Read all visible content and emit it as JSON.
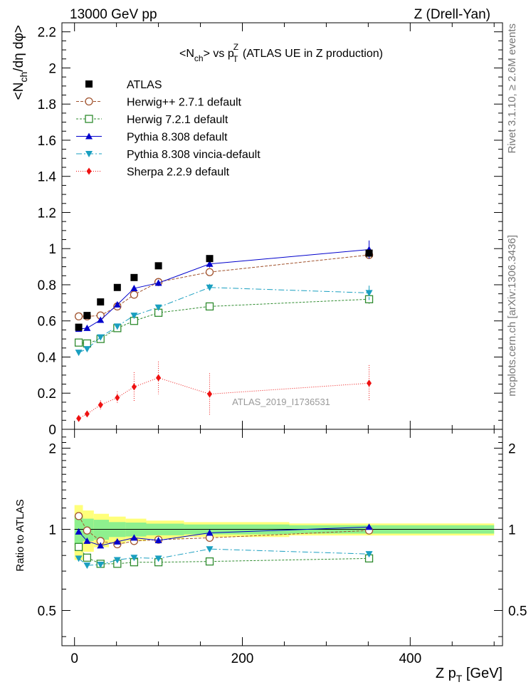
{
  "header": {
    "left": "13000 GeV pp",
    "right": "Z (Drell-Yan)"
  },
  "side_text": {
    "rivet": "Rivet 3.1.10, ≥ 2.6M events",
    "mcplots": "mcplots.cern.ch [arXiv:1306.3436]"
  },
  "chart_data": {
    "type": "scatter",
    "title": "<N_ch> vs p_T^Z (ATLAS UE in Z production)",
    "analysis_label": "ATLAS_2019_I1736531",
    "xlabel": "Z p_T [GeV]",
    "ylabel": "<N_ch/dη dφ>",
    "ratio_ylabel": "Ratio to ATLAS",
    "xlim": [
      -15,
      510
    ],
    "ylim": [
      0,
      2.25
    ],
    "ratio_ylim": [
      0.37,
      2.35
    ],
    "ratio_log_scale": true,
    "x_ticks": [
      "0",
      "200",
      "400"
    ],
    "y_ticks": [
      "0",
      "0.2",
      "0.4",
      "0.6",
      "0.8",
      "1",
      "1.2",
      "1.4",
      "1.6",
      "1.8",
      "2",
      "2.2"
    ],
    "ratio_ticks": [
      "0.5",
      "1",
      "2"
    ],
    "x": [
      5,
      15,
      31,
      51,
      71,
      100,
      161,
      351
    ],
    "reference": {
      "name": "ATLAS",
      "values": [
        0.565,
        0.63,
        0.705,
        0.785,
        0.84,
        0.905,
        0.945,
        0.975
      ],
      "band_inner": [
        0.07,
        0.06,
        0.06,
        0.05,
        0.05,
        0.045,
        0.04,
        0.035
      ],
      "band_outer": [
        0.13,
        0.11,
        0.1,
        0.09,
        0.08,
        0.07,
        0.06,
        0.05
      ]
    },
    "series": [
      {
        "name": "Herwig++ 2.7.1 default",
        "color": "#a0522d",
        "marker": "open-circle",
        "dash": "4,2",
        "values": [
          0.625,
          0.625,
          0.63,
          0.68,
          0.745,
          0.815,
          0.87,
          0.965
        ],
        "errors": [
          0.005,
          0.005,
          0.005,
          0.005,
          0.01,
          0.01,
          0.01,
          0.02
        ]
      },
      {
        "name": "Herwig 7.2.1 default",
        "color": "#2e8b2e",
        "marker": "open-square",
        "dash": "3,2",
        "values": [
          0.48,
          0.475,
          0.5,
          0.56,
          0.6,
          0.645,
          0.68,
          0.72
        ],
        "errors": [
          0.005,
          0.005,
          0.005,
          0.01,
          0.01,
          0.01,
          0.015,
          0.025
        ]
      },
      {
        "name": "Pythia 8.308 default",
        "color": "#0000cc",
        "marker": "triangle-up",
        "dash": "",
        "values": [
          0.555,
          0.56,
          0.605,
          0.69,
          0.78,
          0.81,
          0.915,
          0.995
        ],
        "errors": [
          0.005,
          0.005,
          0.005,
          0.01,
          0.01,
          0.015,
          0.02,
          0.05
        ]
      },
      {
        "name": "Pythia 8.308 vincia-default",
        "color": "#1a9fc0",
        "marker": "triangle-down",
        "dash": "8,3,2,3",
        "values": [
          0.425,
          0.445,
          0.51,
          0.57,
          0.63,
          0.675,
          0.785,
          0.755
        ],
        "errors": [
          0.005,
          0.005,
          0.005,
          0.01,
          0.01,
          0.015,
          0.02,
          0.04
        ]
      },
      {
        "name": "Sherpa 2.2.9 default",
        "color": "#ee1111",
        "marker": "diamond",
        "dash": "1,2",
        "values": [
          0.06,
          0.085,
          0.135,
          0.175,
          0.235,
          0.285,
          0.195,
          0.255
        ],
        "errors": [
          0.01,
          0.015,
          0.025,
          0.035,
          0.08,
          0.09,
          0.115,
          0.1
        ]
      }
    ],
    "ratios": {
      "Herwig++ 2.7.1 default": [
        1.12,
        0.99,
        0.905,
        0.88,
        0.905,
        0.915,
        0.93,
        0.99
      ],
      "Herwig 7.2.1 default": [
        0.86,
        0.785,
        0.745,
        0.745,
        0.755,
        0.755,
        0.76,
        0.78
      ],
      "Pythia 8.308 default": [
        0.98,
        0.905,
        0.87,
        0.9,
        0.93,
        0.91,
        0.97,
        1.02
      ],
      "Pythia 8.308 vincia-default": [
        0.78,
        0.735,
        0.74,
        0.77,
        0.785,
        0.78,
        0.845,
        0.81
      ],
      "Sherpa 2.2.9 default": []
    },
    "grid": false,
    "legend": "top-left"
  }
}
